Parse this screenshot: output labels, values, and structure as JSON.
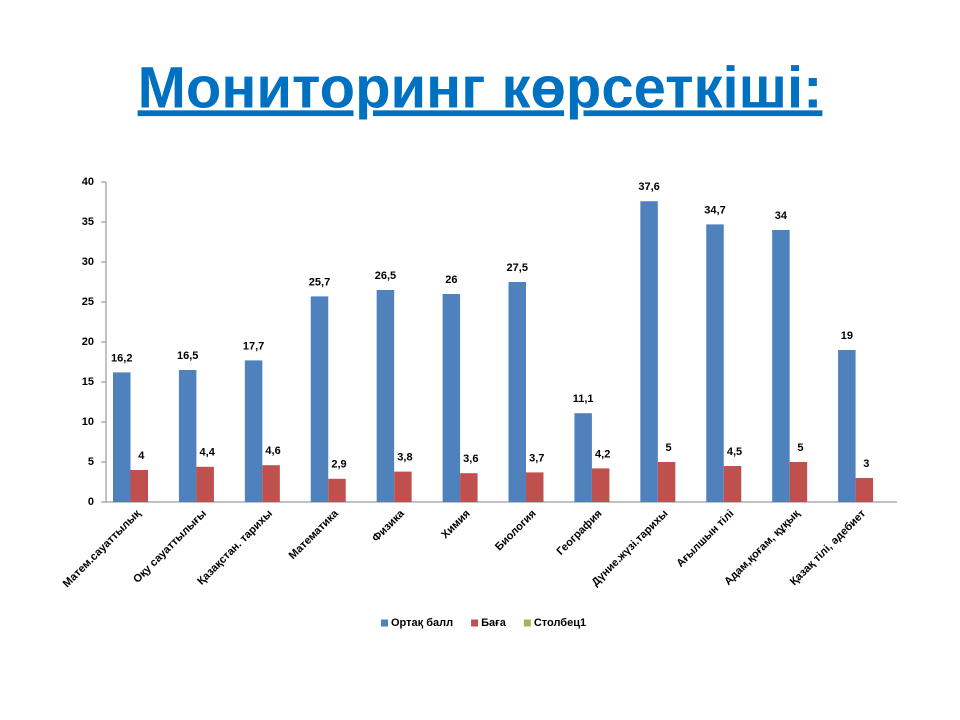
{
  "chart_data": {
    "type": "bar",
    "title": "Мониторинг көрсеткіші:",
    "categories": [
      "Матем.сауаттылық",
      "Оқу сауаттылығы",
      "Қазақстан. тарихы",
      "Математика",
      "Физика",
      "Химия",
      "Биология",
      "География",
      "Дүние.жүзі.тарихы",
      "Ағылшын тілі",
      "Адам,қоғам, құқық",
      "Қазақ тілі, әдебиет"
    ],
    "series": [
      {
        "name": "Ортақ балл",
        "color": "#4f81bd",
        "values": [
          16.2,
          16.5,
          17.7,
          25.7,
          26.5,
          26,
          27.5,
          11.1,
          37.6,
          34.7,
          34,
          19
        ],
        "value_labels": [
          "16,2",
          "16,5",
          "17,7",
          "25,7",
          "26,5",
          "26",
          "27,5",
          "11,1",
          "37,6",
          "34,7",
          "34",
          "19"
        ]
      },
      {
        "name": "Баға",
        "color": "#c0504d",
        "values": [
          4,
          4.4,
          4.6,
          2.9,
          3.8,
          3.6,
          3.7,
          4.2,
          5,
          4.5,
          5,
          3
        ],
        "value_labels": [
          "4",
          "4,4",
          "4,6",
          "2,9",
          "3,8",
          "3,6",
          "3,7",
          "4,2",
          "5",
          "4,5",
          "5",
          "3"
        ]
      },
      {
        "name": "Столбец1",
        "color": "#9bbb59",
        "values": [
          null,
          null,
          null,
          null,
          null,
          null,
          null,
          null,
          null,
          null,
          null,
          null
        ]
      }
    ],
    "ylim": [
      0,
      40
    ],
    "yticks": [
      0,
      5,
      10,
      15,
      20,
      25,
      30,
      35,
      40
    ],
    "grid": false,
    "legend": "bottom"
  }
}
